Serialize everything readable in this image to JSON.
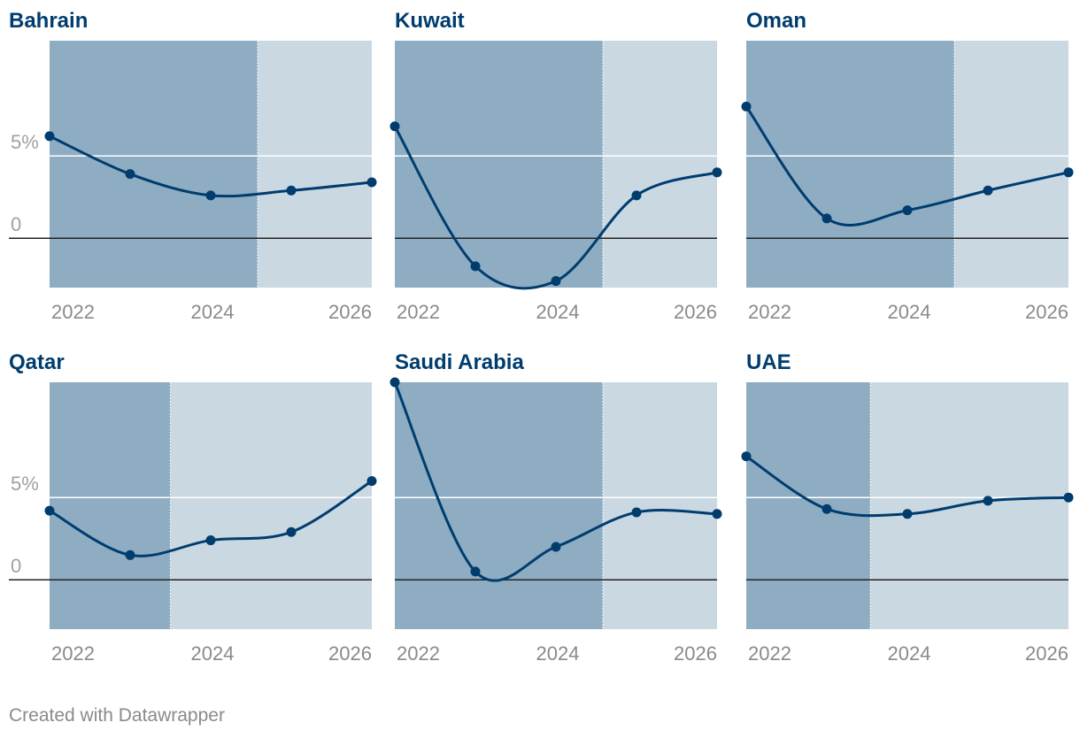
{
  "chart_data": [
    {
      "type": "line",
      "title": "Bahrain",
      "x": [
        2021.5,
        2022.7,
        2023.9,
        2025.1,
        2026.3
      ],
      "values": [
        6.2,
        3.9,
        2.6,
        2.9,
        3.4
      ],
      "forecast_start": 2024.6,
      "xticks": [
        "2022",
        "2024",
        "2026"
      ],
      "yticks": [
        "5%",
        "0"
      ],
      "show_y_labels": true,
      "ylim": [
        -3,
        12
      ],
      "xlim": [
        2021.5,
        2026.3
      ]
    },
    {
      "type": "line",
      "title": "Kuwait",
      "x": [
        2021.5,
        2022.7,
        2023.9,
        2025.1,
        2026.3
      ],
      "values": [
        6.8,
        -1.7,
        -2.6,
        2.6,
        4.0
      ],
      "forecast_start": 2024.6,
      "xticks": [
        "2022",
        "2024",
        "2026"
      ],
      "yticks": [],
      "show_y_labels": false,
      "ylim": [
        -3,
        12
      ],
      "xlim": [
        2021.5,
        2026.3
      ]
    },
    {
      "type": "line",
      "title": "Oman",
      "x": [
        2021.5,
        2022.7,
        2023.9,
        2025.1,
        2026.3
      ],
      "values": [
        8.0,
        1.2,
        1.7,
        2.9,
        4.0
      ],
      "forecast_start": 2024.6,
      "xticks": [
        "2022",
        "2024",
        "2026"
      ],
      "yticks": [],
      "show_y_labels": false,
      "ylim": [
        -3,
        12
      ],
      "xlim": [
        2021.5,
        2026.3
      ]
    },
    {
      "type": "line",
      "title": "Qatar",
      "x": [
        2021.5,
        2022.7,
        2023.9,
        2025.1,
        2026.3
      ],
      "values": [
        4.2,
        1.5,
        2.4,
        2.9,
        6.0
      ],
      "forecast_start": 2023.3,
      "xticks": [
        "2022",
        "2024",
        "2026"
      ],
      "yticks": [
        "5%",
        "0"
      ],
      "show_y_labels": true,
      "ylim": [
        -3,
        12
      ],
      "xlim": [
        2021.5,
        2026.3
      ]
    },
    {
      "type": "line",
      "title": "Saudi Arabia",
      "x": [
        2021.5,
        2022.7,
        2023.9,
        2025.1,
        2026.3
      ],
      "values": [
        12.0,
        0.5,
        2.0,
        4.1,
        4.0
      ],
      "forecast_start": 2024.6,
      "xticks": [
        "2022",
        "2024",
        "2026"
      ],
      "yticks": [],
      "show_y_labels": false,
      "ylim": [
        -3,
        12
      ],
      "xlim": [
        2021.5,
        2026.3
      ]
    },
    {
      "type": "line",
      "title": "UAE",
      "x": [
        2021.5,
        2022.7,
        2023.9,
        2025.1,
        2026.3
      ],
      "values": [
        7.5,
        4.3,
        4.0,
        4.8,
        5.0
      ],
      "forecast_start": 2023.35,
      "xticks": [
        "2022",
        "2024",
        "2026"
      ],
      "yticks": [],
      "show_y_labels": false,
      "ylim": [
        -3,
        12
      ],
      "xlim": [
        2021.5,
        2026.3
      ]
    }
  ],
  "footer": "Created with Datawrapper",
  "colors": {
    "line": "#003d6e",
    "actual_shade": "#8eadc3",
    "forecast_shade": "#cad8e2",
    "gridline": "#ffffff",
    "zero_line": "#222222",
    "tick_label": "#8a8a8a",
    "y_label": "#a0a0a0"
  }
}
